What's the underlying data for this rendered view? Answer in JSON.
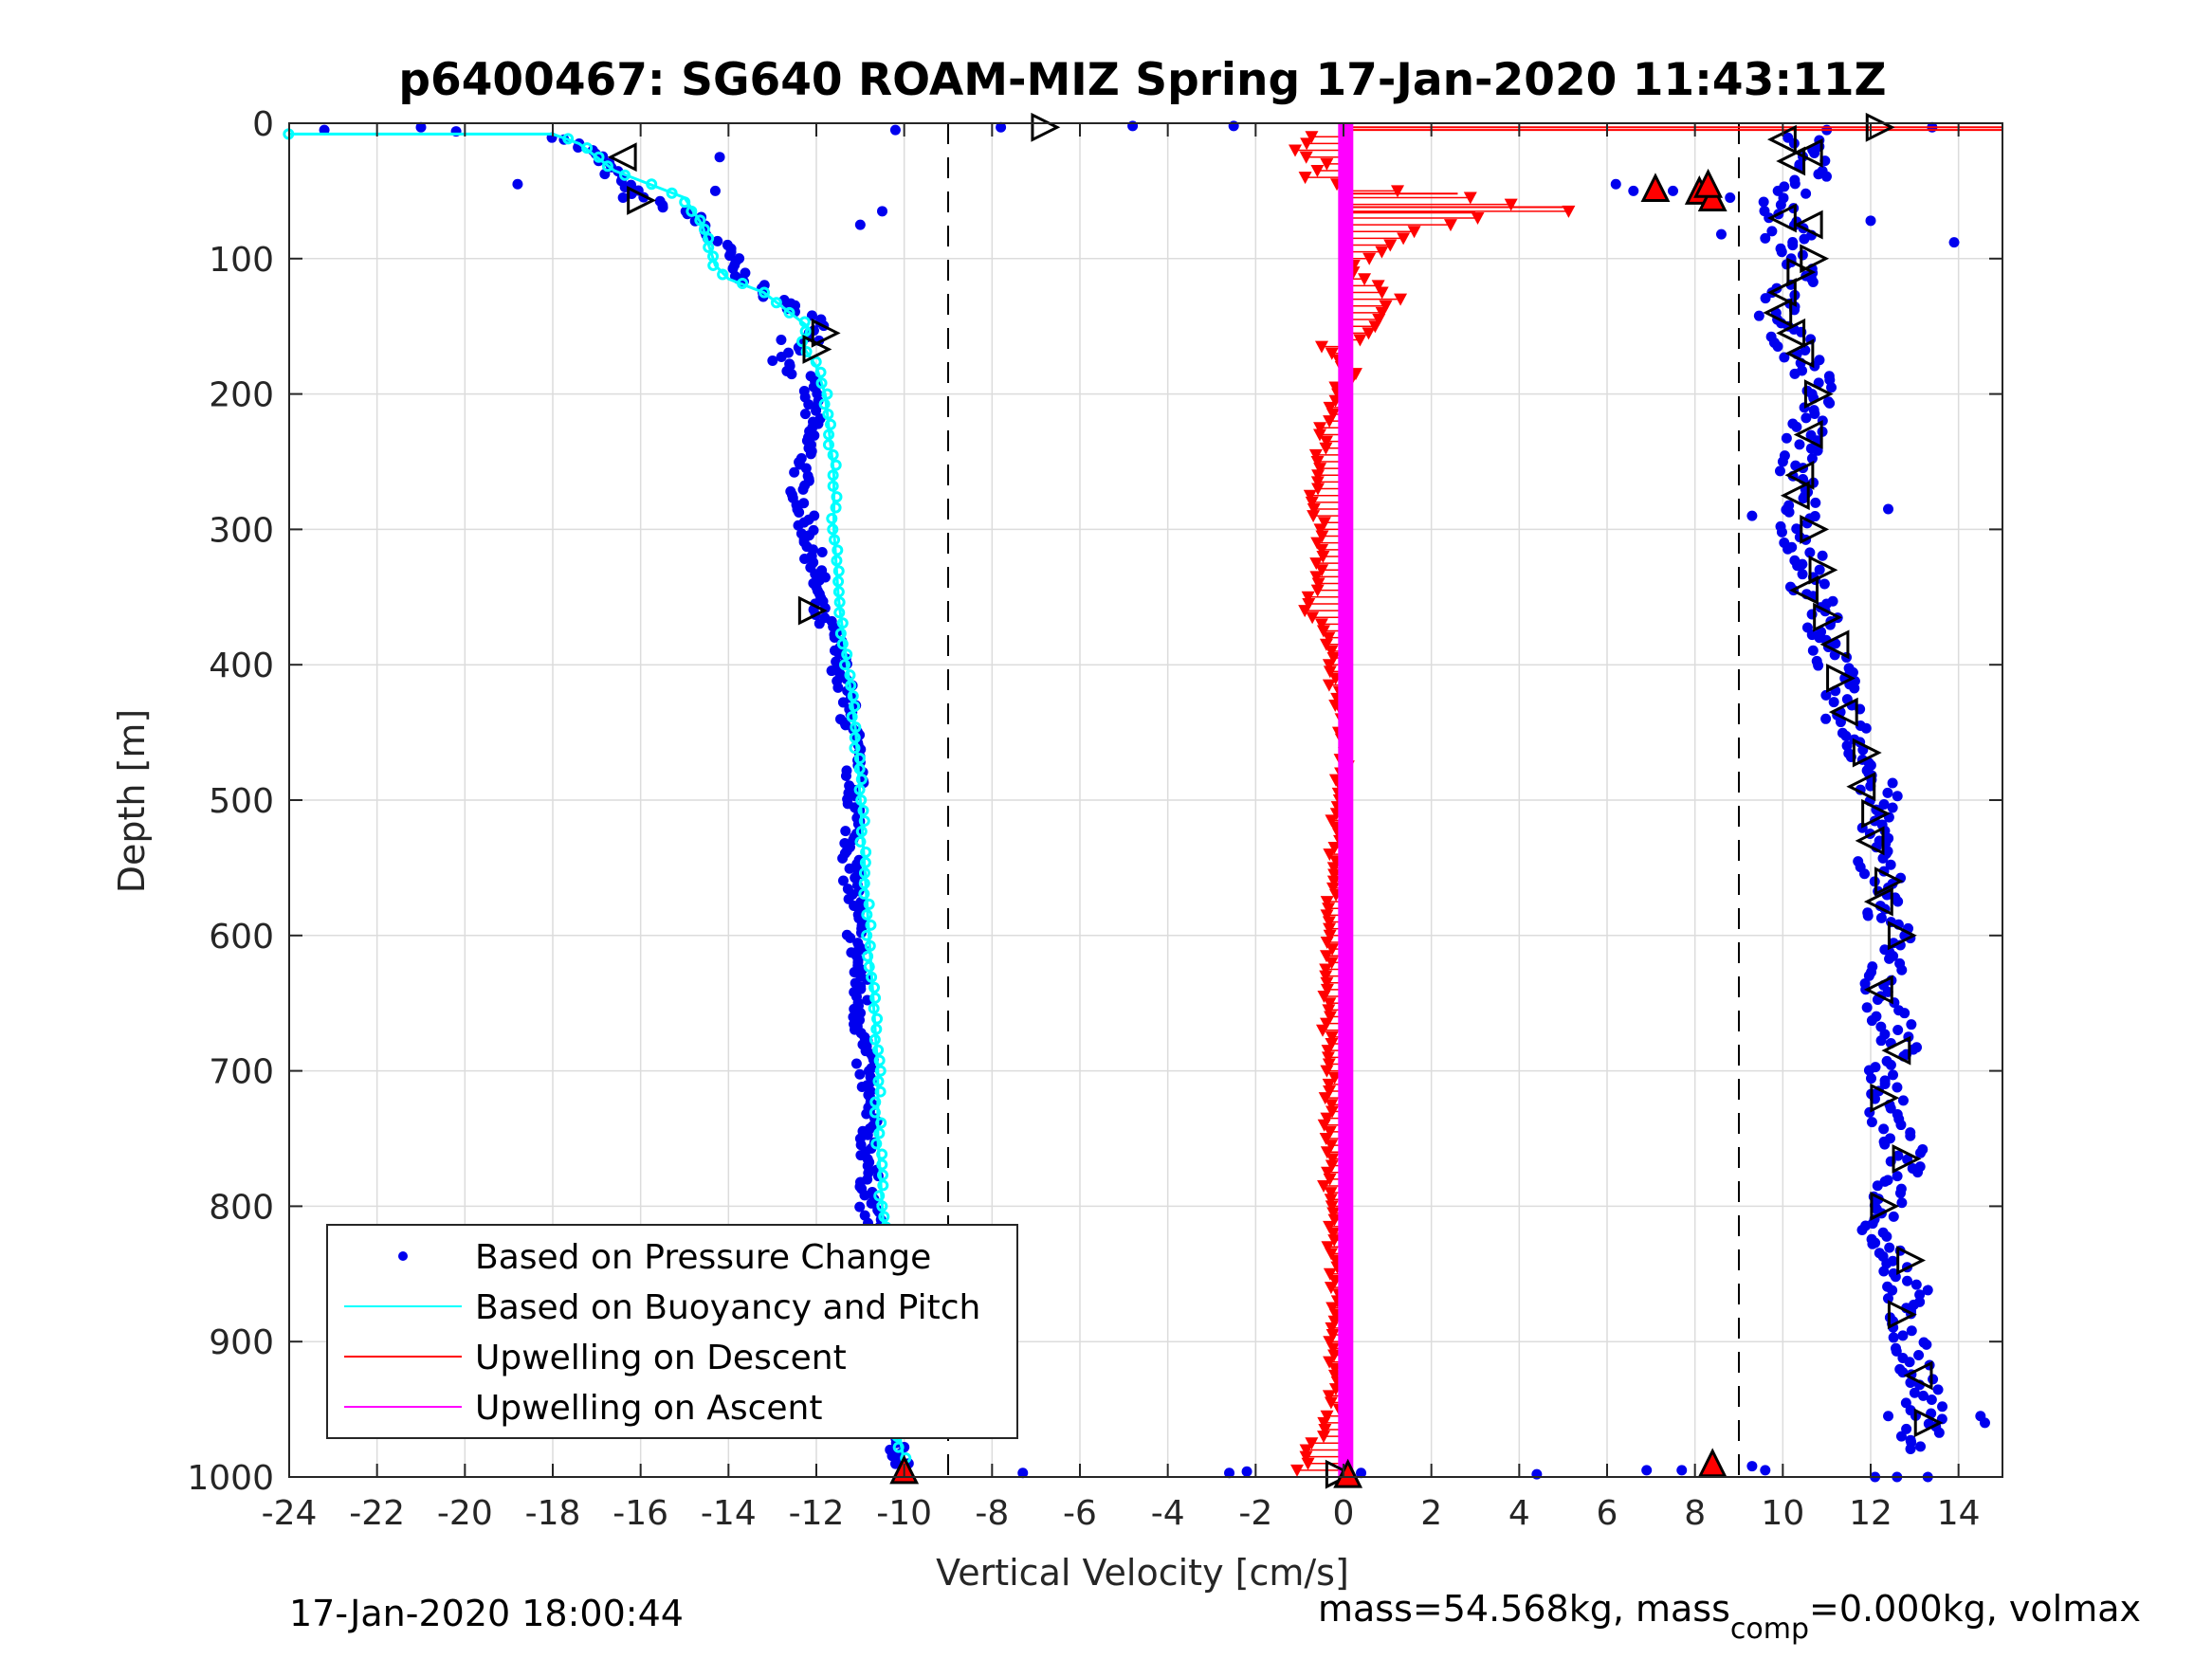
{
  "title": "p6400467: SG640 ROAM-MIZ Spring 17-Jan-2020 11:43:11Z",
  "footer_left": "17-Jan-2020 18:00:44",
  "footer_right": {
    "part1": "mass=54.568kg, mass",
    "sub": "comp",
    "part2": "=0.000kg, volmax"
  },
  "colors": {
    "pressure": "#0000ee",
    "buoyancy": "#00ffff",
    "upwell_descent": "#ff0000",
    "upwell_ascent": "#ff00ff",
    "grid": "#dcdcdc",
    "axis": "#262626"
  },
  "chart_data": {
    "type": "scatter",
    "title": "p6400467: SG640 ROAM-MIZ Spring 17-Jan-2020 11:43:11Z",
    "xlabel": "Vertical Velocity [cm/s]",
    "ylabel": "Depth [m]",
    "xlim": [
      -24,
      15
    ],
    "ylim": [
      0,
      1000
    ],
    "y_reversed": true,
    "grid": true,
    "legend_placement": "bottom-left",
    "xticks": [
      -24,
      -22,
      -20,
      -18,
      -16,
      -14,
      -12,
      -10,
      -8,
      -6,
      -4,
      -2,
      0,
      2,
      4,
      6,
      8,
      10,
      12,
      14
    ],
    "yticks": [
      0,
      100,
      200,
      300,
      400,
      500,
      600,
      700,
      800,
      900,
      1000
    ],
    "reference_lines_x": [
      -9,
      9
    ],
    "legend": [
      "Based on Pressure Change",
      "Based on Buoyancy and Pitch",
      "Upwelling on Descent",
      "Upwelling on Ascent"
    ],
    "series": [
      {
        "name": "Based on Pressure Change",
        "style": "dots",
        "descent_profile": [
          [
            -17.8,
            10
          ],
          [
            -17.2,
            20
          ],
          [
            -16.8,
            30
          ],
          [
            -16.6,
            40
          ],
          [
            -16.2,
            50
          ],
          [
            -15.6,
            60
          ],
          [
            -15.0,
            65
          ],
          [
            -14.6,
            75
          ],
          [
            -14.4,
            85
          ],
          [
            -14.0,
            95
          ],
          [
            -13.9,
            105
          ],
          [
            -13.6,
            115
          ],
          [
            -13.2,
            125
          ],
          [
            -12.6,
            135
          ],
          [
            -12.0,
            145
          ],
          [
            -12.0,
            160
          ],
          [
            -12.8,
            175
          ],
          [
            -12.2,
            190
          ],
          [
            -12.1,
            210
          ],
          [
            -12.2,
            240
          ],
          [
            -12.4,
            270
          ],
          [
            -12.2,
            300
          ],
          [
            -12.0,
            330
          ],
          [
            -12.0,
            360
          ],
          [
            -11.6,
            380
          ],
          [
            -11.4,
            410
          ],
          [
            -11.2,
            450
          ],
          [
            -11.1,
            500
          ],
          [
            -11.2,
            550
          ],
          [
            -11.1,
            600
          ],
          [
            -11.0,
            650
          ],
          [
            -10.9,
            700
          ],
          [
            -10.8,
            750
          ],
          [
            -10.8,
            800
          ],
          [
            -10.5,
            850
          ],
          [
            -10.4,
            900
          ],
          [
            -10.2,
            950
          ],
          [
            -10.1,
            990
          ]
        ],
        "ascent_profile": [
          [
            10.4,
            10
          ],
          [
            10.9,
            25
          ],
          [
            10.6,
            40
          ],
          [
            9.8,
            60
          ],
          [
            10.2,
            80
          ],
          [
            10.5,
            100
          ],
          [
            10.3,
            120
          ],
          [
            9.8,
            140
          ],
          [
            10.2,
            160
          ],
          [
            10.6,
            180
          ],
          [
            10.8,
            200
          ],
          [
            10.6,
            220
          ],
          [
            10.4,
            240
          ],
          [
            10.3,
            260
          ],
          [
            10.4,
            280
          ],
          [
            10.4,
            300
          ],
          [
            10.5,
            320
          ],
          [
            10.6,
            340
          ],
          [
            10.8,
            360
          ],
          [
            11.0,
            380
          ],
          [
            11.2,
            400
          ],
          [
            11.2,
            420
          ],
          [
            11.4,
            440
          ],
          [
            11.8,
            460
          ],
          [
            12.0,
            480
          ],
          [
            12.2,
            500
          ],
          [
            12.2,
            520
          ],
          [
            12.0,
            540
          ],
          [
            12.4,
            560
          ],
          [
            12.2,
            580
          ],
          [
            12.6,
            600
          ],
          [
            12.3,
            620
          ],
          [
            12.3,
            640
          ],
          [
            12.4,
            660
          ],
          [
            12.7,
            680
          ],
          [
            12.4,
            700
          ],
          [
            12.3,
            720
          ],
          [
            12.4,
            740
          ],
          [
            12.8,
            760
          ],
          [
            12.6,
            780
          ],
          [
            12.4,
            800
          ],
          [
            12.2,
            820
          ],
          [
            12.6,
            840
          ],
          [
            12.8,
            860
          ],
          [
            12.6,
            880
          ],
          [
            12.8,
            900
          ],
          [
            13.1,
            920
          ],
          [
            13.2,
            940
          ],
          [
            13.2,
            960
          ],
          [
            13.1,
            980
          ]
        ],
        "outliers": [
          [
            -23.2,
            5
          ],
          [
            -21.0,
            3
          ],
          [
            -20.2,
            6
          ],
          [
            -18.8,
            45
          ],
          [
            -14.2,
            25
          ],
          [
            -14.3,
            50
          ],
          [
            -11.0,
            75
          ],
          [
            -10.5,
            65
          ],
          [
            -10.2,
            5
          ],
          [
            -7.8,
            3
          ],
          [
            -4.8,
            2
          ],
          [
            -2.5,
            2
          ],
          [
            -12.8,
            160
          ],
          [
            -16.4,
            55
          ],
          [
            -9.9,
            990
          ],
          [
            -7.3,
            997
          ],
          [
            -2.6,
            997
          ],
          [
            -2.2,
            996
          ],
          [
            0.4,
            997
          ],
          [
            4.4,
            998
          ],
          [
            6.9,
            995
          ],
          [
            7.7,
            995
          ],
          [
            9.3,
            992
          ],
          [
            9.6,
            995
          ],
          [
            11.0,
            5
          ],
          [
            13.4,
            3
          ],
          [
            13.9,
            88
          ],
          [
            8.6,
            82
          ],
          [
            9.3,
            290
          ],
          [
            9.6,
            85
          ],
          [
            12.0,
            72
          ],
          [
            12.4,
            285
          ],
          [
            14.5,
            955
          ],
          [
            14.6,
            960
          ],
          [
            13.3,
            862
          ],
          [
            13.3,
            1000
          ],
          [
            12.1,
            827
          ],
          [
            12.4,
            955
          ],
          [
            12.6,
            1000
          ],
          [
            12.1,
            1000
          ],
          [
            6.2,
            45
          ],
          [
            6.6,
            50
          ],
          [
            7.5,
            50
          ],
          [
            8.3,
            60
          ],
          [
            8.8,
            55
          ]
        ]
      },
      {
        "name": "Based on Buoyancy and Pitch",
        "style": "line",
        "points": [
          [
            -24.0,
            8
          ],
          [
            -18.0,
            8
          ],
          [
            -17.4,
            15
          ],
          [
            -17.0,
            25
          ],
          [
            -16.6,
            35
          ],
          [
            -15.8,
            45
          ],
          [
            -15.0,
            55
          ],
          [
            -14.8,
            65
          ],
          [
            -14.6,
            75
          ],
          [
            -14.5,
            85
          ],
          [
            -14.4,
            95
          ],
          [
            -14.3,
            105
          ],
          [
            -14.0,
            115
          ],
          [
            -13.2,
            125
          ],
          [
            -12.6,
            140
          ],
          [
            -12.2,
            150
          ],
          [
            -12.3,
            165
          ],
          [
            -12.0,
            180
          ],
          [
            -11.8,
            200
          ],
          [
            -11.7,
            230
          ],
          [
            -11.6,
            260
          ],
          [
            -11.6,
            300
          ],
          [
            -11.5,
            350
          ],
          [
            -11.3,
            400
          ],
          [
            -11.1,
            450
          ],
          [
            -11.0,
            500
          ],
          [
            -10.9,
            550
          ],
          [
            -10.8,
            600
          ],
          [
            -10.7,
            650
          ],
          [
            -10.6,
            700
          ],
          [
            -10.6,
            750
          ],
          [
            -10.5,
            800
          ],
          [
            -10.4,
            850
          ],
          [
            -10.3,
            900
          ],
          [
            -10.2,
            950
          ],
          [
            -10.0,
            990
          ]
        ]
      },
      {
        "name": "Upwelling on Descent",
        "style": "triangles-down",
        "points": [
          [
            -0.6,
            10
          ],
          [
            -1.1,
            20
          ],
          [
            -0.4,
            30
          ],
          [
            -0.8,
            40
          ],
          [
            -0.2,
            45
          ],
          [
            1.2,
            50
          ],
          [
            2.8,
            55
          ],
          [
            5.0,
            65
          ],
          [
            3.0,
            70
          ],
          [
            2.5,
            75
          ],
          [
            1.6,
            80
          ],
          [
            1.0,
            90
          ],
          [
            0.5,
            100
          ],
          [
            0.2,
            110
          ],
          [
            0.8,
            120
          ],
          [
            1.2,
            130
          ],
          [
            0.9,
            140
          ],
          [
            0.6,
            150
          ],
          [
            0.3,
            160
          ],
          [
            -0.4,
            165
          ],
          [
            -0.2,
            175
          ],
          [
            0.2,
            185
          ],
          [
            -0.2,
            200
          ],
          [
            -0.4,
            220
          ],
          [
            -0.5,
            240
          ],
          [
            -0.6,
            260
          ],
          [
            -0.7,
            280
          ],
          [
            -0.5,
            300
          ],
          [
            -0.5,
            320
          ],
          [
            -0.6,
            340
          ],
          [
            -0.8,
            360
          ],
          [
            -0.4,
            380
          ],
          [
            -0.3,
            400
          ],
          [
            -0.2,
            420
          ],
          [
            -0.1,
            440
          ],
          [
            0.1,
            460
          ],
          [
            0.0,
            480
          ],
          [
            -0.2,
            500
          ],
          [
            -0.2,
            550
          ],
          [
            -0.3,
            600
          ],
          [
            -0.4,
            650
          ],
          [
            -0.3,
            700
          ],
          [
            -0.4,
            750
          ],
          [
            -0.3,
            800
          ],
          [
            -0.2,
            850
          ],
          [
            -0.3,
            900
          ],
          [
            -0.2,
            950
          ],
          [
            -1.0,
            995
          ]
        ]
      },
      {
        "name": "Upwelling on Ascent",
        "style": "thick-line",
        "points": [
          [
            0.05,
            0
          ],
          [
            0.05,
            1000
          ]
        ]
      },
      {
        "name": "turn-markers",
        "style": "open-triangles",
        "points": [
          [
            -16.4,
            25,
            "left"
          ],
          [
            -16.0,
            57,
            "right"
          ],
          [
            -11.8,
            155,
            "right"
          ],
          [
            -12.0,
            167,
            "right"
          ],
          [
            -12.1,
            360,
            "right"
          ],
          [
            -6.8,
            3,
            "right"
          ],
          [
            12.2,
            3,
            "right"
          ],
          [
            10.0,
            12,
            "left"
          ],
          [
            10.6,
            22,
            "left"
          ],
          [
            10.2,
            28,
            "left"
          ],
          [
            10.0,
            70,
            "left"
          ],
          [
            10.6,
            75,
            "left"
          ],
          [
            10.7,
            100,
            "right"
          ],
          [
            10.4,
            110,
            "right"
          ],
          [
            10.0,
            125,
            "left"
          ],
          [
            9.9,
            140,
            "left"
          ],
          [
            10.2,
            155,
            "left"
          ],
          [
            10.4,
            170,
            "left"
          ],
          [
            10.8,
            200,
            "right"
          ],
          [
            10.6,
            230,
            "left"
          ],
          [
            10.4,
            260,
            "left"
          ],
          [
            10.3,
            275,
            "left"
          ],
          [
            10.7,
            300,
            "right"
          ],
          [
            10.9,
            330,
            "right"
          ],
          [
            10.5,
            345,
            "left"
          ],
          [
            11.0,
            365,
            "right"
          ],
          [
            11.2,
            385,
            "left"
          ],
          [
            11.3,
            410,
            "right"
          ],
          [
            11.4,
            435,
            "left"
          ],
          [
            11.9,
            465,
            "right"
          ],
          [
            11.8,
            490,
            "left"
          ],
          [
            12.1,
            510,
            "right"
          ],
          [
            12.0,
            530,
            "left"
          ],
          [
            12.4,
            560,
            "right"
          ],
          [
            12.2,
            575,
            "left"
          ],
          [
            12.7,
            600,
            "right"
          ],
          [
            12.2,
            640,
            "left"
          ],
          [
            12.6,
            685,
            "left"
          ],
          [
            12.3,
            720,
            "right"
          ],
          [
            12.8,
            765,
            "right"
          ],
          [
            12.3,
            800,
            "right"
          ],
          [
            12.9,
            840,
            "right"
          ],
          [
            12.7,
            880,
            "right"
          ],
          [
            13.1,
            925,
            "left"
          ],
          [
            13.3,
            960,
            "right"
          ],
          [
            -0.1,
            998,
            "right"
          ]
        ]
      },
      {
        "name": "surface-bottom-markers",
        "style": "filled-triangles-up",
        "points": [
          [
            -10.0,
            995
          ],
          [
            0.1,
            998
          ],
          [
            8.4,
            990
          ],
          [
            7.1,
            48
          ],
          [
            8.1,
            50
          ],
          [
            8.4,
            55
          ],
          [
            8.3,
            45
          ]
        ]
      }
    ],
    "upwelling_descent_lines": [
      [
        0.0,
        3,
        15.0,
        3
      ],
      [
        0.0,
        5,
        15.0,
        5
      ],
      [
        0.0,
        62,
        5.0,
        62
      ],
      [
        0.0,
        66,
        3.0,
        66
      ],
      [
        0.0,
        52,
        2.6,
        52
      ]
    ]
  }
}
